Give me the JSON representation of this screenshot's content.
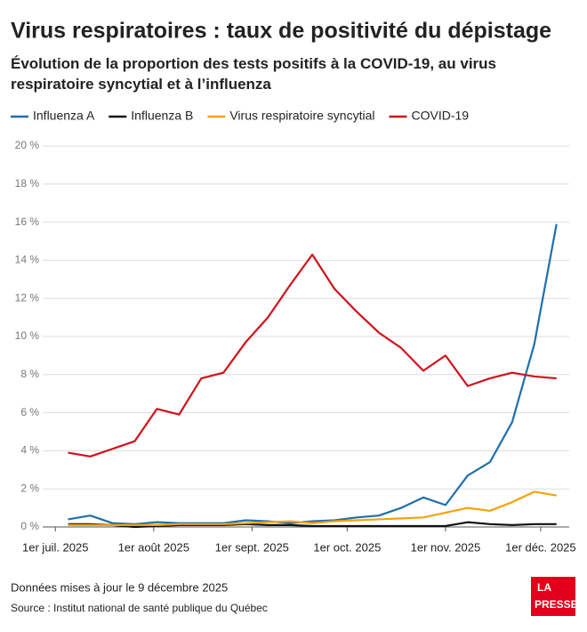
{
  "chart_data": {
    "type": "line",
    "title": "Virus respiratoires : taux de positivité du dépistage",
    "subtitle": "Évolution de la proportion des tests positifs à la COVID-19, au virus respiratoire syncytial et à l’influenza",
    "x": [
      "2025-07-05",
      "2025-07-12",
      "2025-07-19",
      "2025-07-26",
      "2025-08-02",
      "2025-08-09",
      "2025-08-16",
      "2025-08-23",
      "2025-08-30",
      "2025-09-06",
      "2025-09-13",
      "2025-09-20",
      "2025-09-27",
      "2025-10-04",
      "2025-10-11",
      "2025-10-18",
      "2025-10-25",
      "2025-11-01",
      "2025-11-08",
      "2025-11-15",
      "2025-11-22",
      "2025-11-29",
      "2025-12-06"
    ],
    "series": [
      {
        "name": "Influenza A",
        "color": "#1f6fab",
        "values": [
          0.4,
          0.6,
          0.2,
          0.15,
          0.25,
          0.2,
          0.2,
          0.2,
          0.35,
          0.3,
          0.2,
          0.3,
          0.35,
          0.5,
          0.6,
          1.0,
          1.55,
          1.15,
          2.7,
          3.4,
          5.5,
          9.6,
          15.9
        ]
      },
      {
        "name": "Influenza B",
        "color": "#111111",
        "values": [
          0.15,
          0.15,
          0.1,
          0.0,
          0.05,
          0.1,
          0.1,
          0.1,
          0.15,
          0.1,
          0.1,
          0.05,
          0.05,
          0.05,
          0.05,
          0.05,
          0.05,
          0.05,
          0.25,
          0.15,
          0.1,
          0.15,
          0.15
        ]
      },
      {
        "name": "Virus respiratoire syncytial",
        "color": "#f5a20a",
        "values": [
          0.1,
          0.1,
          0.1,
          0.1,
          0.1,
          0.15,
          0.15,
          0.15,
          0.2,
          0.25,
          0.3,
          0.2,
          0.3,
          0.35,
          0.4,
          0.45,
          0.5,
          0.75,
          1.0,
          0.85,
          1.3,
          1.85,
          1.65
        ]
      },
      {
        "name": "COVID-19",
        "color": "#d0121b",
        "values": [
          3.9,
          3.7,
          4.1,
          4.5,
          6.2,
          5.9,
          7.8,
          8.1,
          9.7,
          11.0,
          12.7,
          14.3,
          12.5,
          11.3,
          10.2,
          9.4,
          8.2,
          9.0,
          7.4,
          7.8,
          8.1,
          7.9,
          7.8
        ]
      }
    ],
    "xlim": [
      "2025-06-27",
      "2025-12-10"
    ],
    "xticks": [
      {
        "value": "2025-07-01",
        "label": "1er juil. 2025"
      },
      {
        "value": "2025-08-01",
        "label": "1er août 2025"
      },
      {
        "value": "2025-09-01",
        "label": "1er sept. 2025"
      },
      {
        "value": "2025-10-01",
        "label": "1er oct. 2025"
      },
      {
        "value": "2025-11-01",
        "label": "1er nov. 2025"
      },
      {
        "value": "2025-12-01",
        "label": "1er déc. 2025"
      }
    ],
    "ylim": [
      0,
      20
    ],
    "yticks": [
      {
        "value": 0,
        "label": "0 %"
      },
      {
        "value": 2,
        "label": "2 %"
      },
      {
        "value": 4,
        "label": "4 %"
      },
      {
        "value": 6,
        "label": "6 %"
      },
      {
        "value": 8,
        "label": "8 %"
      },
      {
        "value": 10,
        "label": "10 %"
      },
      {
        "value": 12,
        "label": "12 %"
      },
      {
        "value": 14,
        "label": "14 %"
      },
      {
        "value": 16,
        "label": "16 %"
      },
      {
        "value": 18,
        "label": "18 %"
      },
      {
        "value": 20,
        "label": "20 %"
      }
    ],
    "grid": true,
    "legend": "top",
    "note": "Données mises à jour le 9 décembre 2025",
    "source": "Source : Institut national de santé publique du Québec",
    "logo": [
      "LA",
      "PRESSE"
    ]
  }
}
